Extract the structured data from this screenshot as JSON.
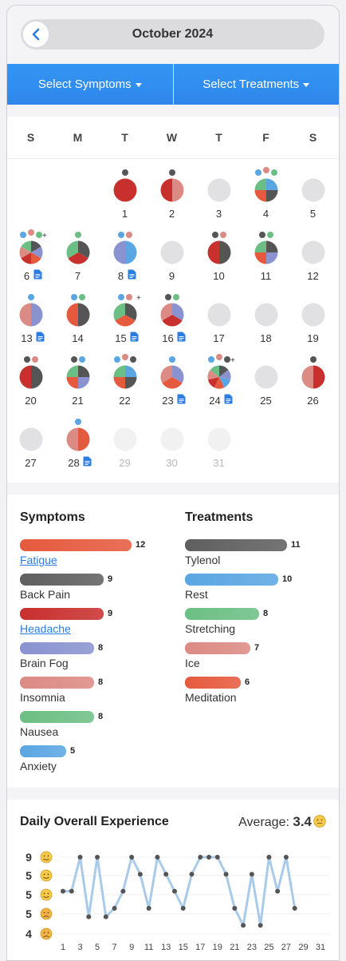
{
  "header": {
    "month_title": "October 2024",
    "back_icon": "chevron-left-icon"
  },
  "filters": {
    "symptoms_label": "Select Symptoms",
    "treatments_label": "Select Treatments"
  },
  "calendar": {
    "weekdays": [
      "S",
      "M",
      "T",
      "W",
      "T",
      "F",
      "S"
    ],
    "days": [
      {
        "n": "1",
        "col": 2,
        "row": 0,
        "slices": [
          "#c8302e"
        ],
        "dots": [
          "#555"
        ],
        "note": false
      },
      {
        "n": "2",
        "col": 3,
        "row": 0,
        "slices": [
          "#dc8a84",
          "#c8302e"
        ],
        "dots": [
          "#555"
        ],
        "note": false
      },
      {
        "n": "3",
        "col": 4,
        "row": 0,
        "slices": [],
        "dots": [],
        "note": false
      },
      {
        "n": "4",
        "col": 5,
        "row": 0,
        "slices": [
          "#5aa6e2",
          "#555",
          "#e55a3e",
          "#6cbf84"
        ],
        "dots": [
          "#5aa6e2",
          "#dc8a84",
          "#6cbf84"
        ],
        "note": false
      },
      {
        "n": "5",
        "col": 6,
        "row": 0,
        "slices": [],
        "dots": [],
        "note": false
      },
      {
        "n": "6",
        "col": 0,
        "row": 1,
        "slices": [
          "#555",
          "#8a93d0",
          "#e55a3e",
          "#c8302e",
          "#dc8a84",
          "#6cbf84"
        ],
        "dots": [
          "#5aa6e2",
          "#dc8a84",
          "#6cbf84"
        ],
        "plus": true,
        "note": true
      },
      {
        "n": "7",
        "col": 1,
        "row": 1,
        "slices": [
          "#555",
          "#c8302e",
          "#6cbf84"
        ],
        "dots": [
          "#6cbf84"
        ],
        "note": false
      },
      {
        "n": "8",
        "col": 2,
        "row": 1,
        "slices": [
          "#5aa6e2",
          "#8a93d0"
        ],
        "dots": [
          "#5aa6e2",
          "#dc8a84"
        ],
        "note": true
      },
      {
        "n": "9",
        "col": 3,
        "row": 1,
        "slices": [],
        "dots": [],
        "note": false
      },
      {
        "n": "10",
        "col": 4,
        "row": 1,
        "slices": [
          "#555",
          "#c8302e"
        ],
        "dots": [
          "#555",
          "#dc8a84"
        ],
        "note": false
      },
      {
        "n": "11",
        "col": 5,
        "row": 1,
        "slices": [
          "#555",
          "#8a93d0",
          "#e55a3e",
          "#6cbf84"
        ],
        "dots": [
          "#555",
          "#6cbf84"
        ],
        "note": false
      },
      {
        "n": "12",
        "col": 6,
        "row": 1,
        "slices": [],
        "dots": [],
        "note": false
      },
      {
        "n": "13",
        "col": 0,
        "row": 2,
        "slices": [
          "#8a93d0",
          "#dc8a84"
        ],
        "dots": [
          "#5aa6e2"
        ],
        "note": true
      },
      {
        "n": "14",
        "col": 1,
        "row": 2,
        "slices": [
          "#555",
          "#e55a3e"
        ],
        "dots": [
          "#5aa6e2",
          "#6cbf84"
        ],
        "note": false
      },
      {
        "n": "15",
        "col": 2,
        "row": 2,
        "slices": [
          "#555",
          "#e55a3e",
          "#6cbf84"
        ],
        "dots": [
          "#5aa6e2",
          "#dc8a84"
        ],
        "plus": true,
        "note": true
      },
      {
        "n": "16",
        "col": 3,
        "row": 2,
        "slices": [
          "#8a93d0",
          "#c8302e",
          "#dc8a84"
        ],
        "dots": [
          "#555",
          "#6cbf84"
        ],
        "note": true
      },
      {
        "n": "17",
        "col": 4,
        "row": 2,
        "slices": [],
        "dots": [],
        "note": false
      },
      {
        "n": "18",
        "col": 5,
        "row": 2,
        "slices": [],
        "dots": [],
        "note": false
      },
      {
        "n": "19",
        "col": 6,
        "row": 2,
        "slices": [],
        "dots": [],
        "note": false
      },
      {
        "n": "20",
        "col": 0,
        "row": 3,
        "slices": [
          "#555",
          "#c8302e"
        ],
        "dots": [
          "#555",
          "#dc8a84"
        ],
        "note": false
      },
      {
        "n": "21",
        "col": 1,
        "row": 3,
        "slices": [
          "#555",
          "#8a93d0",
          "#e55a3e",
          "#6cbf84"
        ],
        "dots": [
          "#555",
          "#5aa6e2"
        ],
        "note": false
      },
      {
        "n": "22",
        "col": 2,
        "row": 3,
        "slices": [
          "#5aa6e2",
          "#555",
          "#e55a3e",
          "#6cbf84"
        ],
        "dots": [
          "#5aa6e2",
          "#dc8a84",
          "#555"
        ],
        "note": false
      },
      {
        "n": "23",
        "col": 3,
        "row": 3,
        "slices": [
          "#8a93d0",
          "#e55a3e",
          "#dc8a84"
        ],
        "dots": [
          "#5aa6e2"
        ],
        "note": true
      },
      {
        "n": "24",
        "col": 4,
        "row": 3,
        "slices": [
          "#555",
          "#8a93d0",
          "#5aa6e2",
          "#e55a3e",
          "#c8302e",
          "#dc8a84",
          "#6cbf84"
        ],
        "dots": [
          "#5aa6e2",
          "#dc8a84",
          "#555"
        ],
        "plus": true,
        "note": true
      },
      {
        "n": "25",
        "col": 5,
        "row": 3,
        "slices": [],
        "dots": [],
        "note": false
      },
      {
        "n": "26",
        "col": 6,
        "row": 3,
        "slices": [
          "#c8302e",
          "#dc8a84"
        ],
        "dots": [
          "#555"
        ],
        "note": false
      },
      {
        "n": "27",
        "col": 0,
        "row": 4,
        "slices": [],
        "dots": [],
        "note": false
      },
      {
        "n": "28",
        "col": 1,
        "row": 4,
        "slices": [
          "#e55a3e",
          "#dc8a84"
        ],
        "dots": [
          "#5aa6e2"
        ],
        "note": true
      },
      {
        "n": "29",
        "col": 2,
        "row": 4,
        "slices": [],
        "dots": [],
        "note": false,
        "outside": true
      },
      {
        "n": "30",
        "col": 3,
        "row": 4,
        "slices": [],
        "dots": [],
        "note": false,
        "outside": true
      },
      {
        "n": "31",
        "col": 4,
        "row": 4,
        "slices": [],
        "dots": [],
        "note": false,
        "outside": true
      }
    ]
  },
  "summary": {
    "symptoms_title": "Symptoms",
    "treatments_title": "Treatments",
    "max_count": 12,
    "symptoms": [
      {
        "label": "Fatigue",
        "count": "12",
        "color": "#e55a3e",
        "link": true
      },
      {
        "label": "Back Pain",
        "count": "9",
        "color": "#5f5f5f",
        "link": false
      },
      {
        "label": "Headache",
        "count": "9",
        "color": "#c8302e",
        "link": true
      },
      {
        "label": "Brain Fog",
        "count": "8",
        "color": "#8a93d0",
        "link": false
      },
      {
        "label": "Insomnia",
        "count": "8",
        "color": "#dc8a84",
        "link": false
      },
      {
        "label": "Nausea",
        "count": "8",
        "color": "#6cbf84",
        "link": false
      },
      {
        "label": "Anxiety",
        "count": "5",
        "color": "#5aa6e2",
        "link": false
      }
    ],
    "treatments": [
      {
        "label": "Tylenol",
        "count": "11",
        "color": "#5f5f5f"
      },
      {
        "label": "Rest",
        "count": "10",
        "color": "#5aa6e2"
      },
      {
        "label": "Stretching",
        "count": "8",
        "color": "#6cbf84"
      },
      {
        "label": "Ice",
        "count": "7",
        "color": "#dc8a84"
      },
      {
        "label": "Meditation",
        "count": "6",
        "color": "#e55a3e"
      }
    ]
  },
  "experience": {
    "title": "Daily Overall Experience",
    "average_label": "Average:",
    "average_value": "3.4",
    "chart_data": {
      "type": "line",
      "x_ticks": [
        "1",
        "3",
        "5",
        "7",
        "9",
        "11",
        "13",
        "15",
        "17",
        "19",
        "21",
        "23",
        "25",
        "27",
        "29",
        "31"
      ],
      "y_tick_labels": [
        "9",
        "5",
        "5",
        "5",
        "4"
      ],
      "ylim": [
        1,
        10
      ],
      "x": [
        1,
        2,
        3,
        4,
        5,
        6,
        7,
        8,
        9,
        10,
        11,
        12,
        13,
        14,
        15,
        16,
        17,
        18,
        19,
        20,
        21,
        22,
        23,
        24,
        25,
        26,
        27,
        28
      ],
      "y": [
        6,
        6,
        10,
        3,
        10,
        3,
        4,
        6,
        10,
        8,
        4,
        10,
        8,
        6,
        4,
        8,
        10,
        10,
        10,
        8,
        4,
        2,
        8,
        2,
        10,
        6,
        10,
        4
      ],
      "line_color": "#a9cbe9",
      "point_color": "#555555"
    }
  }
}
